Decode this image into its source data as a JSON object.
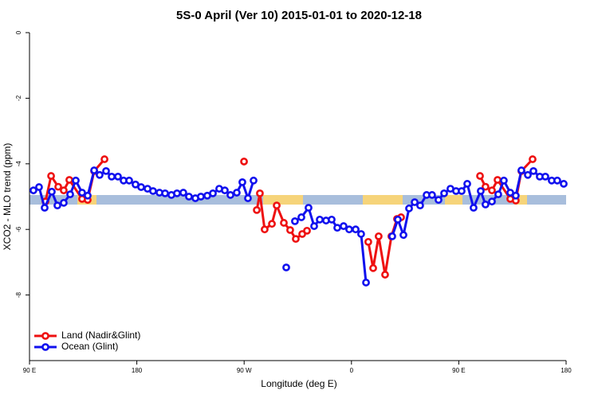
{
  "chart_data": {
    "type": "line",
    "title": "5S-0 April (Ver 10)   2015-01-01 to 2020-12-18",
    "x_label": "Longitude (deg E)",
    "y_label": "XCO2 - MLO trend (ppm)",
    "xlim": [
      90,
      540
    ],
    "xticks": [
      {
        "value": 90,
        "label": "90 E"
      },
      {
        "value": 180,
        "label": "180"
      },
      {
        "value": 270,
        "label": "90 W"
      },
      {
        "value": 360,
        "label": "0"
      },
      {
        "value": 450,
        "label": "90 E"
      },
      {
        "value": 540,
        "label": "180"
      }
    ],
    "ylim": [
      -10,
      0
    ],
    "yticks": [
      0,
      -2,
      -4,
      -6,
      -8
    ],
    "legend": "bottom-left",
    "series": [
      {
        "name": "Land (Nadir&Glint)",
        "color": "#ee1111",
        "x": [
          103.4,
          108.1,
          114.1,
          118.7,
          123.4,
          134.1,
          138.8,
          144.2,
          152.9,
          null,
          269.9,
          null,
          280.6,
          283.2,
          287.2,
          293.3,
          297.3,
          303.3,
          308.6,
          313.3,
          318.7,
          322.7,
          null,
          374.1,
          378.2,
          382.8,
          388.2,
          393.5,
          398.2,
          401.6,
          null,
          467.8,
          472.4,
          477.8,
          482.5,
          493.2,
          497.8,
          502.5,
          511.9
        ],
        "values": [
          -5.15,
          -4.37,
          -4.7,
          -4.81,
          -4.49,
          -5.07,
          -5.1,
          -4.22,
          -3.86,
          null,
          -3.93,
          null,
          -5.41,
          -4.9,
          -6.0,
          -5.83,
          -5.27,
          -5.8,
          -6.02,
          -6.29,
          -6.14,
          -6.04,
          null,
          -6.38,
          -7.18,
          -6.21,
          -7.38,
          -6.21,
          -5.68,
          -5.63,
          null,
          -4.37,
          -4.7,
          -4.81,
          -4.49,
          -5.07,
          -5.12,
          -4.22,
          -3.86
        ]
      },
      {
        "name": "Ocean (Glint)",
        "color": "#1111ee",
        "x": [
          93.3,
          98.0,
          102.7,
          108.7,
          113.4,
          118.7,
          124.1,
          128.8,
          134.1,
          138.8,
          144.2,
          148.8,
          154.2,
          158.9,
          164.2,
          168.9,
          173.6,
          178.9,
          183.6,
          189.0,
          193.6,
          199.0,
          203.7,
          209.0,
          213.7,
          219.0,
          223.7,
          229.1,
          233.7,
          239.1,
          243.8,
          249.1,
          253.8,
          258.5,
          263.8,
          268.5,
          273.2,
          277.9,
          null,
          305.3,
          null,
          312.6,
          318.0,
          324.0,
          328.7,
          333.4,
          338.7,
          343.4,
          348.1,
          353.4,
          358.1,
          363.5,
          368.1,
          372.2,
          null,
          394.2,
          398.9,
          403.6,
          408.3,
          413.0,
          417.6,
          423.0,
          427.6,
          433.0,
          437.7,
          443.0,
          447.7,
          452.4,
          457.1,
          462.4,
          468.4,
          472.4,
          477.8,
          483.1,
          487.8,
          493.2,
          497.8,
          502.5,
          507.9,
          512.6,
          517.9,
          522.6,
          527.9,
          532.6,
          538.0
        ],
        "values": [
          -4.81,
          -4.71,
          -5.34,
          -4.85,
          -5.27,
          -5.19,
          -4.93,
          -4.51,
          -4.88,
          -4.97,
          -4.2,
          -4.34,
          -4.22,
          -4.39,
          -4.39,
          -4.51,
          -4.51,
          -4.63,
          -4.71,
          -4.76,
          -4.83,
          -4.88,
          -4.9,
          -4.95,
          -4.9,
          -4.88,
          -5.0,
          -5.05,
          -5.0,
          -4.97,
          -4.9,
          -4.76,
          -4.81,
          -4.95,
          -4.88,
          -4.56,
          -5.05,
          -4.51,
          null,
          -7.16,
          null,
          -5.75,
          -5.63,
          -5.34,
          -5.9,
          -5.7,
          -5.73,
          -5.7,
          -5.95,
          -5.9,
          -6.0,
          -6.0,
          -6.14,
          -7.62,
          null,
          -6.21,
          -5.7,
          -6.17,
          -5.36,
          -5.17,
          -5.27,
          -4.95,
          -4.95,
          -5.1,
          -4.9,
          -4.76,
          -4.83,
          -4.83,
          -4.61,
          -5.34,
          -4.83,
          -5.24,
          -5.15,
          -4.93,
          -4.51,
          -4.88,
          -4.97,
          -4.2,
          -4.34,
          -4.22,
          -4.39,
          -4.39,
          -4.51,
          -4.51,
          -4.61
        ]
      }
    ]
  }
}
